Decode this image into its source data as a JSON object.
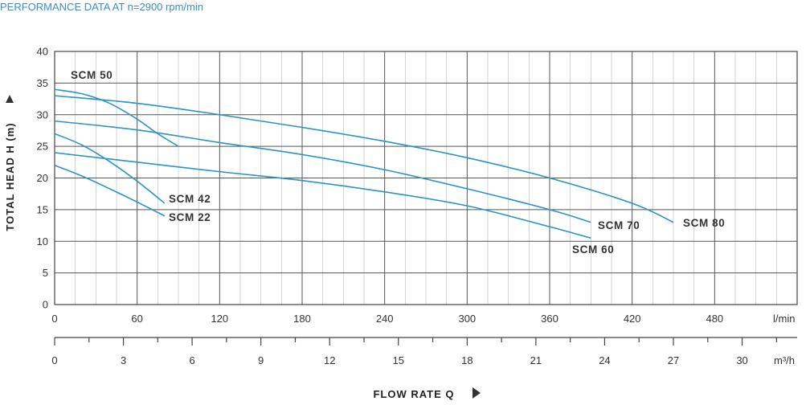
{
  "header": {
    "title": "PERFORMANCE DATA AT n=2900 rpm/min"
  },
  "colors": {
    "curve": "#2a93c8",
    "title": "#3b8fc6",
    "grid_major": "#555555",
    "grid_minor": "#b9b9b9",
    "text": "#333333"
  },
  "chart_data": {
    "type": "line",
    "title": "PERFORMANCE DATA AT n=2900 rpm/min",
    "ylabel": "TOTAL HEAD H (m)",
    "xlabel": "FLOW RATE Q",
    "x_unit": "l/min",
    "x2_unit": "m³/h",
    "xlim": [
      0,
      540
    ],
    "ylim": [
      0,
      40
    ],
    "x2lim": [
      0,
      32.4
    ],
    "x_ticks": [
      0,
      60,
      120,
      180,
      240,
      300,
      360,
      420,
      480
    ],
    "x2_ticks": [
      0,
      3,
      6,
      9,
      12,
      15,
      18,
      21,
      24,
      27,
      30
    ],
    "y_ticks": [
      0,
      5,
      10,
      15,
      20,
      25,
      30,
      35,
      40
    ],
    "grid": true,
    "series": [
      {
        "name": "SCM 50",
        "x": [
          0,
          20,
          40,
          60,
          75,
          90
        ],
        "y": [
          34,
          33.3,
          31.8,
          29.3,
          27.0,
          25.0
        ]
      },
      {
        "name": "SCM 42",
        "x": [
          0,
          20,
          40,
          60,
          80
        ],
        "y": [
          27,
          25.2,
          22.6,
          19.5,
          16.0
        ]
      },
      {
        "name": "SCM 22",
        "x": [
          0,
          20,
          40,
          60,
          80
        ],
        "y": [
          22,
          20.3,
          18.3,
          16.2,
          14.0
        ]
      },
      {
        "name": "SCM 80",
        "x": [
          0,
          60,
          120,
          180,
          240,
          300,
          360,
          420,
          450
        ],
        "y": [
          33,
          31.8,
          30.0,
          28.0,
          25.8,
          23.2,
          20.0,
          16.0,
          13.0
        ]
      },
      {
        "name": "SCM 70",
        "x": [
          0,
          60,
          120,
          180,
          240,
          300,
          360,
          390
        ],
        "y": [
          29,
          27.6,
          25.6,
          23.7,
          21.3,
          18.3,
          15.0,
          13.0
        ]
      },
      {
        "name": "SCM 60",
        "x": [
          0,
          60,
          120,
          180,
          240,
          300,
          360,
          390
        ],
        "y": [
          24,
          22.5,
          21.0,
          19.6,
          17.8,
          15.6,
          12.3,
          10.5
        ]
      }
    ]
  }
}
